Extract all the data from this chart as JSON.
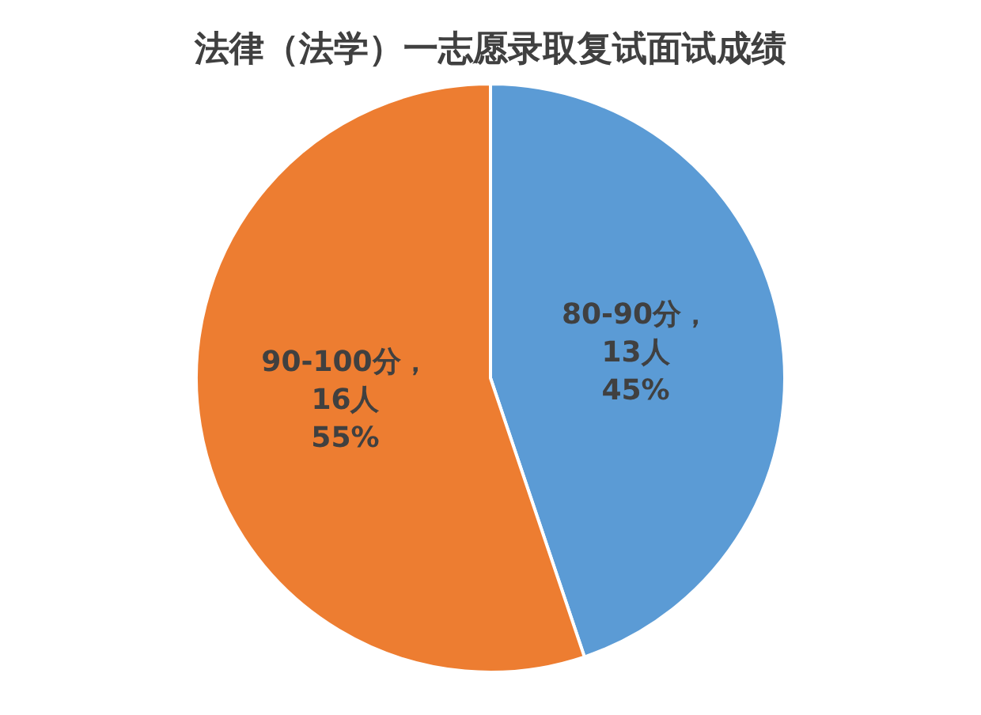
{
  "chart_data": {
    "type": "pie",
    "title": "法律（法学）一志愿录取复试面试成绩",
    "categories": [
      "80-90分",
      "90-100分"
    ],
    "values": [
      13,
      16
    ],
    "colors": [
      "#5b9bd5",
      "#ed7d31"
    ],
    "value_labels": [
      "，\n13人\n45%",
      "，\n16人\n55%"
    ],
    "legend": false
  }
}
